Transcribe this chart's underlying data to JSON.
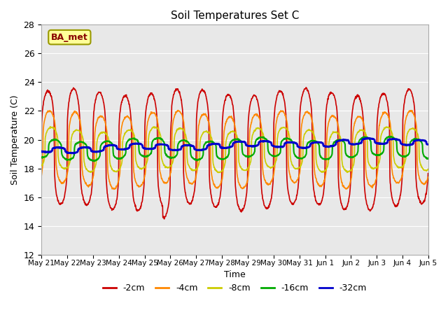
{
  "title": "Soil Temperatures Set C",
  "xlabel": "Time",
  "ylabel": "Soil Temperature (C)",
  "ylim": [
    12,
    28
  ],
  "yticks": [
    12,
    14,
    16,
    18,
    20,
    22,
    24,
    26,
    28
  ],
  "annotation": "BA_met",
  "legend_labels": [
    "-2cm",
    "-4cm",
    "-8cm",
    "-16cm",
    "-32cm"
  ],
  "line_colors": [
    "#cc0000",
    "#ff8800",
    "#cccc00",
    "#00aa00",
    "#0000cc"
  ],
  "bg_color": "#e8e8e8",
  "n_days": 15,
  "base_temp": 19.3,
  "amplitudes": [
    4.0,
    2.5,
    1.4,
    0.65,
    0.18
  ],
  "phase_offsets": [
    0.0,
    0.06,
    0.14,
    0.28,
    0.42
  ],
  "peak_sharpness": 3.5,
  "points_per_day": 96,
  "slow_amp": 0.25,
  "slow_period": 4.5,
  "mean_drift_per_day": [
    0.0,
    0.0,
    0.0,
    0.01,
    0.04
  ],
  "date_labels": [
    "May 21",
    "May 22",
    "May 23",
    "May 24",
    "May 25",
    "May 26",
    "May 27",
    "May 28",
    "May 29",
    "May 30",
    "May 31",
    "Jun 1",
    "Jun 2",
    "Jun 3",
    "Jun 4",
    "Jun 5"
  ]
}
